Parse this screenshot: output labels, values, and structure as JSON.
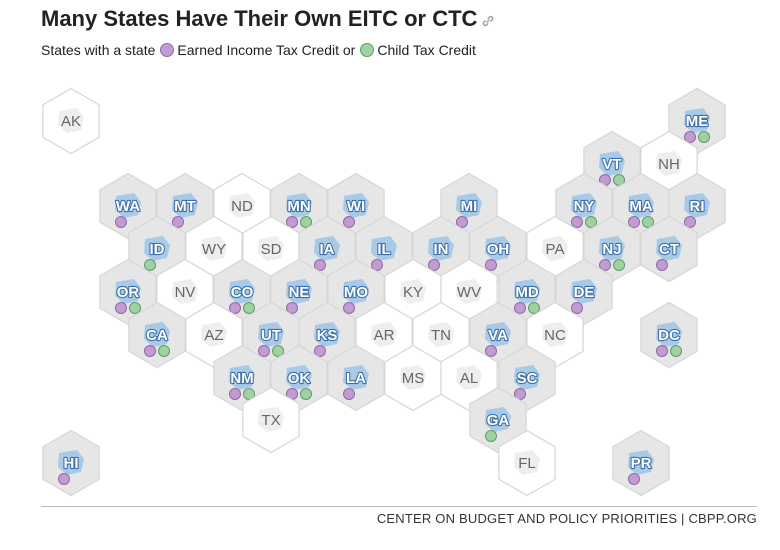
{
  "title": "Many States Have Their Own EITC or CTC",
  "legend": {
    "prefix": "States with a state",
    "eitc_label": "Earned Income Tax Credit or",
    "ctc_label": "Child Tax Credit",
    "eitc_color": "#c39bd3",
    "ctc_color": "#9fd1a3"
  },
  "colors": {
    "hex_fill": "#e6e6e6",
    "hex_empty_fill": "#ffffff",
    "hex_stroke": "#d6d6d6",
    "credit_label": "#ffffff",
    "credit_label_outline": "#3d6fa8",
    "plain_label": "#666666",
    "state_silhouette": "#9ec4e6"
  },
  "icons": {
    "title_link": "link-icon"
  },
  "source": "CENTER ON BUDGET AND POLICY PRIORITIES | CBPP.ORG",
  "states": [
    {
      "abbr": "AK",
      "eitc": false,
      "ctc": false
    },
    {
      "abbr": "ME",
      "eitc": true,
      "ctc": true
    },
    {
      "abbr": "VT",
      "eitc": true,
      "ctc": true
    },
    {
      "abbr": "NH",
      "eitc": false,
      "ctc": false
    },
    {
      "abbr": "WA",
      "eitc": true,
      "ctc": false
    },
    {
      "abbr": "MT",
      "eitc": true,
      "ctc": false
    },
    {
      "abbr": "ND",
      "eitc": false,
      "ctc": false
    },
    {
      "abbr": "MN",
      "eitc": true,
      "ctc": true
    },
    {
      "abbr": "WI",
      "eitc": true,
      "ctc": false
    },
    {
      "abbr": "MI",
      "eitc": true,
      "ctc": false
    },
    {
      "abbr": "NY",
      "eitc": true,
      "ctc": true
    },
    {
      "abbr": "MA",
      "eitc": true,
      "ctc": true
    },
    {
      "abbr": "RI",
      "eitc": true,
      "ctc": false
    },
    {
      "abbr": "ID",
      "eitc": false,
      "ctc": true
    },
    {
      "abbr": "WY",
      "eitc": false,
      "ctc": false
    },
    {
      "abbr": "SD",
      "eitc": false,
      "ctc": false
    },
    {
      "abbr": "IA",
      "eitc": true,
      "ctc": false
    },
    {
      "abbr": "IL",
      "eitc": true,
      "ctc": false
    },
    {
      "abbr": "IN",
      "eitc": true,
      "ctc": false
    },
    {
      "abbr": "OH",
      "eitc": true,
      "ctc": false
    },
    {
      "abbr": "PA",
      "eitc": false,
      "ctc": false
    },
    {
      "abbr": "NJ",
      "eitc": true,
      "ctc": true
    },
    {
      "abbr": "CT",
      "eitc": true,
      "ctc": false
    },
    {
      "abbr": "OR",
      "eitc": true,
      "ctc": true
    },
    {
      "abbr": "NV",
      "eitc": false,
      "ctc": false
    },
    {
      "abbr": "CO",
      "eitc": true,
      "ctc": true
    },
    {
      "abbr": "NE",
      "eitc": true,
      "ctc": false
    },
    {
      "abbr": "MO",
      "eitc": true,
      "ctc": false
    },
    {
      "abbr": "KY",
      "eitc": false,
      "ctc": false
    },
    {
      "abbr": "WV",
      "eitc": false,
      "ctc": false
    },
    {
      "abbr": "MD",
      "eitc": true,
      "ctc": true
    },
    {
      "abbr": "DE",
      "eitc": true,
      "ctc": false
    },
    {
      "abbr": "CA",
      "eitc": true,
      "ctc": true
    },
    {
      "abbr": "AZ",
      "eitc": false,
      "ctc": false
    },
    {
      "abbr": "UT",
      "eitc": true,
      "ctc": true
    },
    {
      "abbr": "KS",
      "eitc": true,
      "ctc": false
    },
    {
      "abbr": "AR",
      "eitc": false,
      "ctc": false
    },
    {
      "abbr": "TN",
      "eitc": false,
      "ctc": false
    },
    {
      "abbr": "VA",
      "eitc": true,
      "ctc": false
    },
    {
      "abbr": "NC",
      "eitc": false,
      "ctc": false
    },
    {
      "abbr": "DC",
      "eitc": true,
      "ctc": true
    },
    {
      "abbr": "NM",
      "eitc": true,
      "ctc": true
    },
    {
      "abbr": "OK",
      "eitc": true,
      "ctc": true
    },
    {
      "abbr": "LA",
      "eitc": true,
      "ctc": false
    },
    {
      "abbr": "MS",
      "eitc": false,
      "ctc": false
    },
    {
      "abbr": "AL",
      "eitc": false,
      "ctc": false
    },
    {
      "abbr": "SC",
      "eitc": true,
      "ctc": false
    },
    {
      "abbr": "TX",
      "eitc": false,
      "ctc": false
    },
    {
      "abbr": "GA",
      "eitc": false,
      "ctc": true
    },
    {
      "abbr": "HI",
      "eitc": true,
      "ctc": false
    },
    {
      "abbr": "FL",
      "eitc": false,
      "ctc": false
    },
    {
      "abbr": "PR",
      "eitc": true,
      "ctc": false
    }
  ]
}
